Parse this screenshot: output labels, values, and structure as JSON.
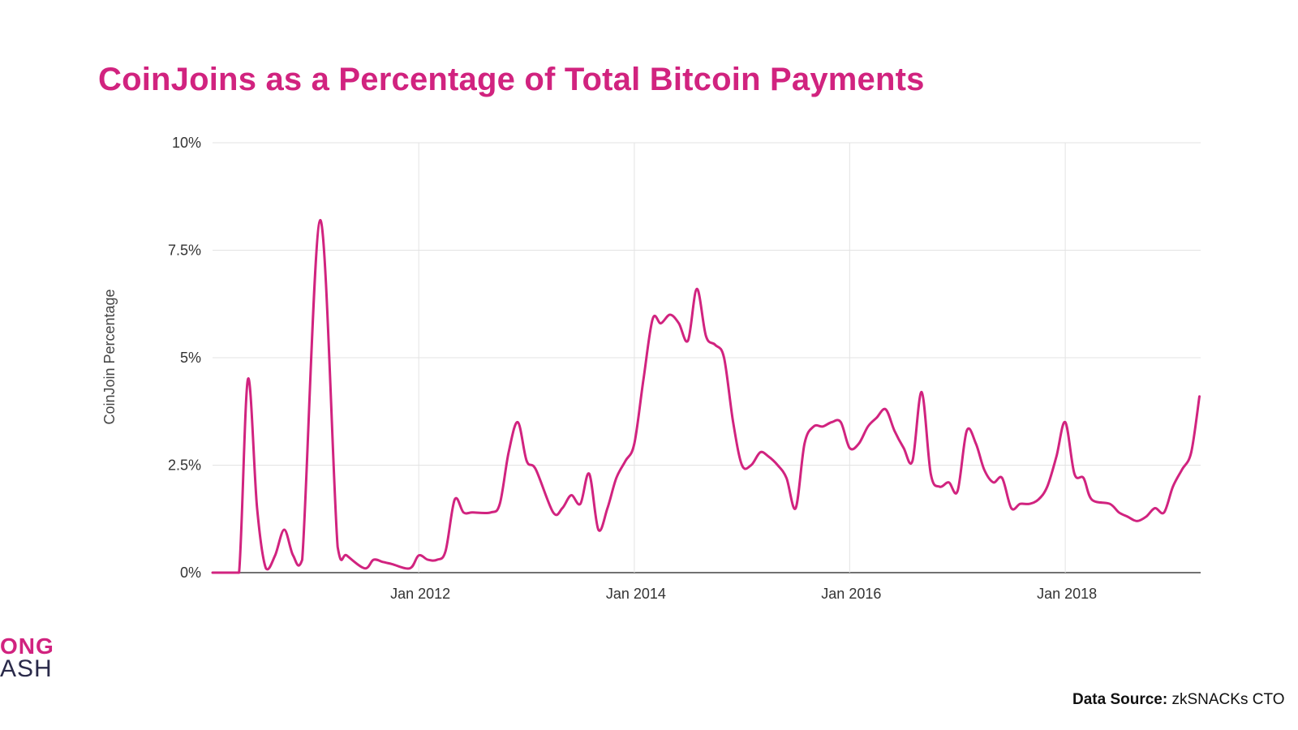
{
  "title": "CoinJoins as a Percentage of Total Bitcoin Payments",
  "logo": {
    "top": "ONG",
    "bottom": "ASH"
  },
  "source": {
    "label": "Data Source:",
    "value": "zkSNACKs CTO"
  },
  "colors": {
    "accent": "#d1237f",
    "line": "#d1237f",
    "grid": "#e3e3e3",
    "axis": "#444444"
  },
  "chart_data": {
    "type": "line",
    "title": "CoinJoins as a Percentage of Total Bitcoin Payments",
    "xlabel": "",
    "ylabel": "CoinJoin Percentage",
    "ylim": [
      0,
      10
    ],
    "xlim": [
      "2010-01-01",
      "2019-01-01"
    ],
    "grid": true,
    "y_ticks": [
      0,
      2.5,
      5,
      7.5,
      10
    ],
    "y_tick_labels": [
      "0%",
      "2.5%",
      "5%",
      "7.5%",
      "10%"
    ],
    "x_ticks": [
      "2011-12-01",
      "2013-12-01",
      "2015-12-01",
      "2017-12-01"
    ],
    "x_tick_labels": [
      "Jan 2012",
      "Jan 2014",
      "Jan 2016",
      "Jan 2018"
    ],
    "series": [
      {
        "values": [
          [
            "2010-01-01",
            0.0
          ],
          [
            "2010-03-01",
            0.0
          ],
          [
            "2010-04-01",
            0.0
          ],
          [
            "2010-05-01",
            4.5
          ],
          [
            "2010-06-01",
            1.5
          ],
          [
            "2010-07-01",
            0.1
          ],
          [
            "2010-08-01",
            0.4
          ],
          [
            "2010-09-01",
            1.0
          ],
          [
            "2010-10-01",
            0.4
          ],
          [
            "2010-11-01",
            0.3
          ],
          [
            "2011-01-01",
            8.2
          ],
          [
            "2011-03-01",
            0.6
          ],
          [
            "2011-04-01",
            0.4
          ],
          [
            "2011-06-01",
            0.1
          ],
          [
            "2011-07-01",
            0.3
          ],
          [
            "2011-08-01",
            0.25
          ],
          [
            "2011-09-01",
            0.2
          ],
          [
            "2011-11-01",
            0.1
          ],
          [
            "2011-12-01",
            0.4
          ],
          [
            "2012-01-01",
            0.3
          ],
          [
            "2012-02-01",
            0.3
          ],
          [
            "2012-03-01",
            0.5
          ],
          [
            "2012-04-01",
            1.7
          ],
          [
            "2012-05-01",
            1.4
          ],
          [
            "2012-06-01",
            1.4
          ],
          [
            "2012-08-01",
            1.4
          ],
          [
            "2012-09-01",
            1.6
          ],
          [
            "2012-10-01",
            2.8
          ],
          [
            "2012-11-01",
            3.5
          ],
          [
            "2012-12-01",
            2.6
          ],
          [
            "2013-01-01",
            2.4
          ],
          [
            "2013-03-01",
            1.4
          ],
          [
            "2013-04-01",
            1.5
          ],
          [
            "2013-05-01",
            1.8
          ],
          [
            "2013-06-01",
            1.6
          ],
          [
            "2013-07-01",
            2.3
          ],
          [
            "2013-08-01",
            1.0
          ],
          [
            "2013-09-01",
            1.5
          ],
          [
            "2013-10-01",
            2.2
          ],
          [
            "2013-11-01",
            2.6
          ],
          [
            "2013-12-01",
            3.0
          ],
          [
            "2014-01-01",
            4.5
          ],
          [
            "2014-02-01",
            5.9
          ],
          [
            "2014-03-01",
            5.8
          ],
          [
            "2014-04-01",
            6.0
          ],
          [
            "2014-05-01",
            5.8
          ],
          [
            "2014-06-01",
            5.4
          ],
          [
            "2014-07-01",
            6.6
          ],
          [
            "2014-08-01",
            5.5
          ],
          [
            "2014-09-01",
            5.3
          ],
          [
            "2014-10-01",
            5.0
          ],
          [
            "2014-11-01",
            3.5
          ],
          [
            "2014-12-01",
            2.5
          ],
          [
            "2015-01-01",
            2.5
          ],
          [
            "2015-02-01",
            2.8
          ],
          [
            "2015-03-01",
            2.7
          ],
          [
            "2015-04-01",
            2.5
          ],
          [
            "2015-05-01",
            2.2
          ],
          [
            "2015-06-01",
            1.5
          ],
          [
            "2015-07-01",
            3.0
          ],
          [
            "2015-08-01",
            3.4
          ],
          [
            "2015-09-01",
            3.4
          ],
          [
            "2015-10-01",
            3.5
          ],
          [
            "2015-11-01",
            3.5
          ],
          [
            "2015-12-01",
            2.9
          ],
          [
            "2016-01-01",
            3.0
          ],
          [
            "2016-02-01",
            3.4
          ],
          [
            "2016-03-01",
            3.6
          ],
          [
            "2016-04-01",
            3.8
          ],
          [
            "2016-05-01",
            3.3
          ],
          [
            "2016-06-01",
            2.9
          ],
          [
            "2016-07-01",
            2.6
          ],
          [
            "2016-08-01",
            4.2
          ],
          [
            "2016-09-01",
            2.3
          ],
          [
            "2016-10-01",
            2.0
          ],
          [
            "2016-11-01",
            2.1
          ],
          [
            "2016-12-01",
            1.9
          ],
          [
            "2017-01-01",
            3.3
          ],
          [
            "2017-02-01",
            3.0
          ],
          [
            "2017-03-01",
            2.4
          ],
          [
            "2017-04-01",
            2.1
          ],
          [
            "2017-05-01",
            2.2
          ],
          [
            "2017-06-01",
            1.5
          ],
          [
            "2017-07-01",
            1.6
          ],
          [
            "2017-08-01",
            1.6
          ],
          [
            "2017-09-01",
            1.7
          ],
          [
            "2017-10-01",
            2.0
          ],
          [
            "2017-11-01",
            2.7
          ],
          [
            "2017-12-01",
            3.5
          ],
          [
            "2018-01-01",
            2.3
          ],
          [
            "2018-02-01",
            2.2
          ],
          [
            "2018-03-01",
            1.7
          ],
          [
            "2018-05-01",
            1.6
          ],
          [
            "2018-06-01",
            1.4
          ],
          [
            "2018-07-01",
            1.3
          ],
          [
            "2018-08-01",
            1.2
          ],
          [
            "2018-09-01",
            1.3
          ],
          [
            "2018-10-01",
            1.5
          ],
          [
            "2018-11-01",
            1.4
          ],
          [
            "2018-12-01",
            2.0
          ],
          [
            "2019-01-01",
            2.4
          ],
          [
            "2019-02-01",
            2.8
          ],
          [
            "2019-03-01",
            4.1
          ]
        ]
      }
    ]
  }
}
